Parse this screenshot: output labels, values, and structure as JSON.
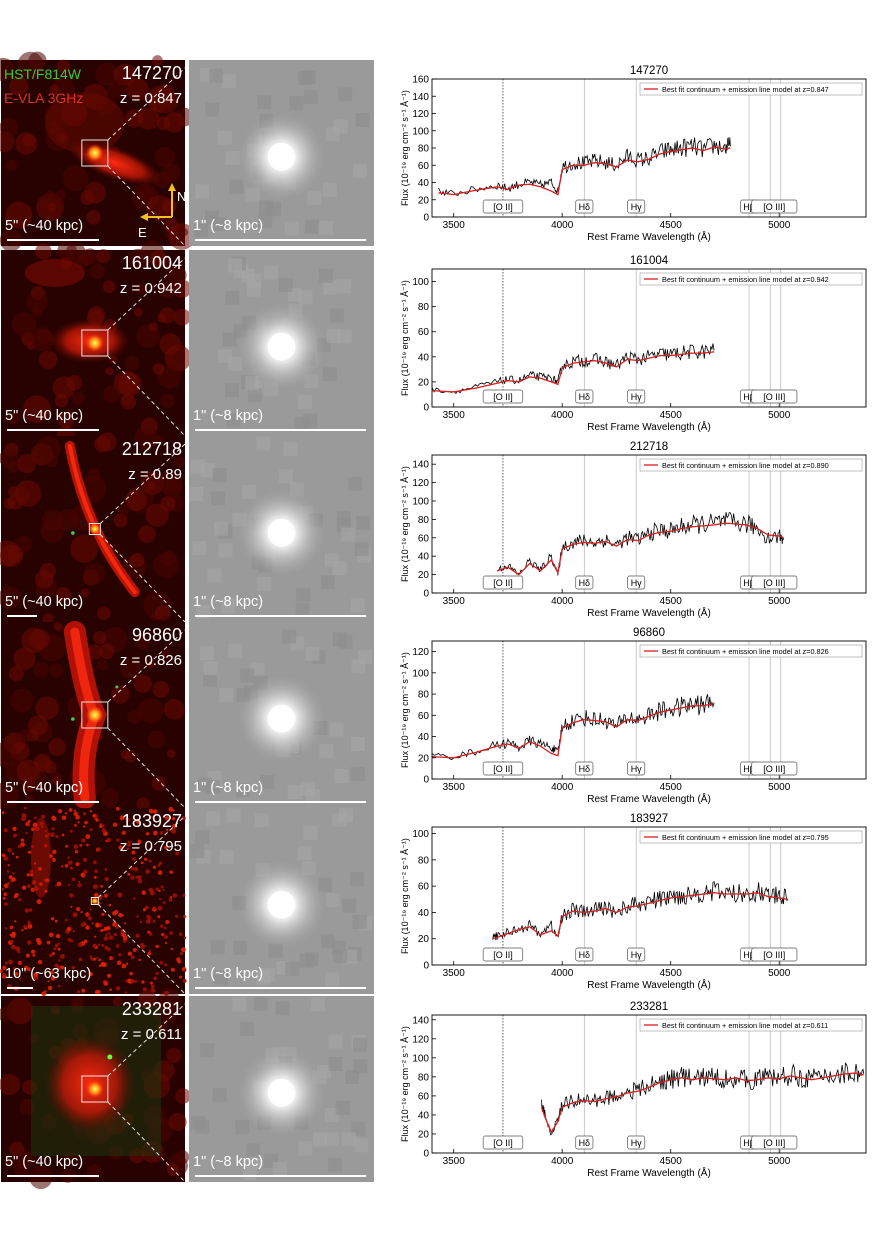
{
  "legend_band_labels": {
    "hst": "HST/F814W",
    "vla": "E-VLA 3GHz"
  },
  "compass": {
    "north": "N",
    "east": "E"
  },
  "axis_labels": {
    "x": "Rest Frame Wavelength (Å)",
    "y": "Flux (10⁻¹⁹ erg cm⁻² s⁻¹ Å⁻¹)"
  },
  "x_ticks": [
    3500,
    4000,
    4500,
    5000
  ],
  "line_labels": [
    {
      "id": "oii",
      "label": "[O II]",
      "wavelength": 3727,
      "line_style": "dotted"
    },
    {
      "id": "hd",
      "label": "Hδ",
      "wavelength": 4102,
      "line_style": "solid"
    },
    {
      "id": "hg",
      "label": "Hγ",
      "wavelength": 4341,
      "line_style": "solid"
    },
    {
      "id": "hb",
      "label": "Hβ",
      "wavelength": 4861,
      "line_style": "solid"
    },
    {
      "id": "oiii",
      "label": "[O III]",
      "wavelength": 4959,
      "line_style": "solid"
    },
    {
      "id": "oiii2",
      "label": "",
      "wavelength": 5007,
      "line_style": "solid"
    }
  ],
  "rows": [
    {
      "id": "147270",
      "z_label": "z = 0.847",
      "scale_radio": "5\" (~40 kpc)",
      "scale_opt": "1\" (~8 kpc)",
      "radio_style": "blob",
      "show_band_labels": true,
      "show_compass": true
    },
    {
      "id": "161004",
      "z_label": "z = 0.942",
      "scale_radio": "5\" (~40 kpc)",
      "scale_opt": "1\" (~8 kpc)",
      "radio_style": "patchy",
      "show_band_labels": false,
      "show_compass": false
    },
    {
      "id": "212718",
      "z_label": "z = 0.89",
      "scale_radio": "5\" (~40 kpc)",
      "scale_opt": "1\" (~8 kpc)",
      "radio_style": "jet",
      "show_band_labels": false,
      "show_compass": false
    },
    {
      "id": "96860",
      "z_label": "z = 0.826",
      "scale_radio": "5\" (~40 kpc)",
      "scale_opt": "1\" (~8 kpc)",
      "radio_style": "jet2",
      "show_band_labels": false,
      "show_compass": false
    },
    {
      "id": "183927",
      "z_label": "z = 0.795",
      "scale_radio": "10\" (~63 kpc)",
      "scale_opt": "1\" (~8 kpc)",
      "radio_style": "noise",
      "show_band_labels": false,
      "show_compass": false
    },
    {
      "id": "233281",
      "z_label": "z = 0.611",
      "scale_radio": "5\" (~40 kpc)",
      "scale_opt": "1\" (~8 kpc)",
      "radio_style": "cloud",
      "show_band_labels": false,
      "show_compass": false
    }
  ],
  "chart_data": [
    {
      "type": "line",
      "title": "147270",
      "legend": "Best fit continuum + emission line model at z=0.847",
      "legend_position": "top-right",
      "xlim": [
        3400,
        5400
      ],
      "ylim": [
        0,
        160
      ],
      "yticks": [
        0,
        20,
        40,
        60,
        80,
        100,
        120,
        140,
        160
      ],
      "series": [
        {
          "name": "",
          "color": "#000000",
          "x": [
            3430,
            3500,
            3600,
            3700,
            3750,
            3800,
            3850,
            3900,
            3950,
            3980,
            4000,
            4050,
            4100,
            4150,
            4200,
            4250,
            4300,
            4350,
            4400,
            4450,
            4500,
            4550,
            4600,
            4650,
            4700,
            4750,
            4775
          ],
          "y": [
            30,
            27,
            32,
            37,
            33,
            38,
            40,
            37,
            40,
            30,
            58,
            63,
            62,
            65,
            63,
            60,
            70,
            66,
            68,
            75,
            78,
            80,
            82,
            78,
            83,
            80,
            82
          ]
        },
        {
          "name": "Best fit continuum + emission line model at z=0.847",
          "color": "#d62020",
          "x": [
            3430,
            3500,
            3600,
            3700,
            3750,
            3800,
            3850,
            3900,
            3950,
            3980,
            4000,
            4050,
            4100,
            4150,
            4200,
            4250,
            4300,
            4350,
            4400,
            4450,
            4500,
            4550,
            4600,
            4650,
            4700,
            4750,
            4775
          ],
          "y": [
            28,
            26,
            31,
            35,
            32,
            37,
            38,
            35,
            30,
            26,
            55,
            60,
            60,
            63,
            62,
            58,
            66,
            64,
            67,
            73,
            76,
            78,
            80,
            77,
            81,
            79,
            80
          ]
        }
      ]
    },
    {
      "type": "line",
      "title": "161004",
      "legend": "Best fit continuum + emission line model at z=0.942",
      "legend_position": "top-right",
      "xlim": [
        3400,
        5400
      ],
      "ylim": [
        0,
        110
      ],
      "yticks": [
        0,
        20,
        40,
        60,
        80,
        100
      ],
      "series": [
        {
          "name": "",
          "color": "#000000",
          "x": [
            3400,
            3500,
            3600,
            3700,
            3750,
            3800,
            3850,
            3900,
            3950,
            3980,
            4000,
            4050,
            4100,
            4150,
            4200,
            4250,
            4300,
            4350,
            4400,
            4450,
            4500,
            4550,
            4600,
            4650,
            4700
          ],
          "y": [
            14,
            12,
            16,
            20,
            22,
            21,
            25,
            24,
            23,
            20,
            33,
            36,
            37,
            38,
            36,
            33,
            40,
            38,
            40,
            42,
            42,
            43,
            44,
            44,
            45
          ]
        },
        {
          "name": "Best fit continuum + emission line model at z=0.942",
          "color": "#d62020",
          "x": [
            3400,
            3500,
            3600,
            3700,
            3750,
            3800,
            3850,
            3900,
            3950,
            3980,
            4000,
            4050,
            4100,
            4150,
            4200,
            4250,
            4300,
            4350,
            4400,
            4450,
            4500,
            4550,
            4600,
            4650,
            4700
          ],
          "y": [
            13,
            12,
            15,
            19,
            21,
            20,
            24,
            23,
            20,
            18,
            31,
            35,
            36,
            37,
            35,
            32,
            38,
            37,
            39,
            41,
            41,
            42,
            43,
            43,
            44
          ]
        }
      ]
    },
    {
      "type": "line",
      "title": "212718",
      "legend": "Best fit continuum + emission line model at z=0.890",
      "legend_position": "top-right",
      "xlim": [
        3400,
        5400
      ],
      "ylim": [
        0,
        150
      ],
      "yticks": [
        0,
        20,
        40,
        60,
        80,
        100,
        120,
        140
      ],
      "series": [
        {
          "name": "",
          "color": "#000000",
          "x": [
            3700,
            3750,
            3800,
            3850,
            3900,
            3950,
            3980,
            4000,
            4050,
            4100,
            4150,
            4200,
            4250,
            4300,
            4350,
            4400,
            4450,
            4500,
            4550,
            4600,
            4650,
            4700,
            4750,
            4800,
            4850,
            4900,
            4950,
            5000,
            5020
          ],
          "y": [
            25,
            30,
            20,
            35,
            25,
            40,
            20,
            50,
            55,
            57,
            55,
            58,
            52,
            60,
            58,
            65,
            68,
            68,
            72,
            74,
            75,
            76,
            78,
            76,
            75,
            70,
            60,
            62,
            60
          ]
        },
        {
          "name": "Best fit continuum + emission line model at z=0.890",
          "color": "#d62020",
          "x": [
            3700,
            3750,
            3800,
            3850,
            3900,
            3950,
            3980,
            4000,
            4050,
            4100,
            4150,
            4200,
            4250,
            4300,
            4350,
            4400,
            4450,
            4500,
            4550,
            4600,
            4650,
            4700,
            4750,
            4800,
            4850,
            4900,
            4950,
            5000,
            5020
          ],
          "y": [
            24,
            28,
            20,
            32,
            24,
            36,
            22,
            48,
            53,
            55,
            54,
            56,
            51,
            58,
            57,
            63,
            66,
            67,
            70,
            72,
            73,
            74,
            76,
            75,
            74,
            70,
            63,
            62,
            60
          ]
        }
      ]
    },
    {
      "type": "line",
      "title": "96860",
      "legend": "Best fit continuum + emission line model at z=0.826",
      "legend_position": "top-right",
      "xlim": [
        3400,
        5400
      ],
      "ylim": [
        0,
        130
      ],
      "yticks": [
        0,
        20,
        40,
        60,
        80,
        100,
        120
      ],
      "series": [
        {
          "name": "",
          "color": "#000000",
          "x": [
            3400,
            3500,
            3600,
            3700,
            3750,
            3800,
            3850,
            3900,
            3950,
            3980,
            4000,
            4050,
            4100,
            4150,
            4200,
            4250,
            4300,
            4350,
            4400,
            4450,
            4500,
            4550,
            4600,
            4650,
            4700
          ],
          "y": [
            22,
            21,
            26,
            32,
            34,
            30,
            36,
            33,
            30,
            25,
            50,
            55,
            58,
            56,
            55,
            50,
            58,
            56,
            60,
            64,
            66,
            68,
            70,
            70,
            72
          ]
        },
        {
          "name": "Best fit continuum + emission line model at z=0.826",
          "color": "#d62020",
          "x": [
            3400,
            3500,
            3600,
            3700,
            3750,
            3800,
            3850,
            3900,
            3950,
            3980,
            4000,
            4050,
            4100,
            4150,
            4200,
            4250,
            4300,
            4350,
            4400,
            4450,
            4500,
            4550,
            4600,
            4650,
            4700
          ],
          "y": [
            21,
            20,
            25,
            31,
            33,
            29,
            35,
            31,
            24,
            22,
            48,
            53,
            56,
            55,
            54,
            49,
            56,
            55,
            59,
            63,
            65,
            67,
            69,
            69,
            71
          ]
        }
      ]
    },
    {
      "type": "line",
      "title": "183927",
      "legend": "Best fit continuum + emission line model at z=0.795",
      "legend_position": "top-right",
      "xlim": [
        3400,
        5400
      ],
      "ylim": [
        0,
        105
      ],
      "yticks": [
        0,
        20,
        40,
        60,
        80,
        100
      ],
      "series": [
        {
          "name": "",
          "color": "#000000",
          "x": [
            3680,
            3700,
            3750,
            3800,
            3850,
            3900,
            3950,
            3980,
            4000,
            4050,
            4100,
            4150,
            4200,
            4250,
            4300,
            4350,
            4400,
            4450,
            4500,
            4550,
            4600,
            4650,
            4700,
            4750,
            4800,
            4850,
            4900,
            4950,
            5000,
            5040
          ],
          "y": [
            20,
            22,
            25,
            28,
            30,
            24,
            30,
            20,
            38,
            42,
            40,
            42,
            44,
            40,
            45,
            46,
            48,
            50,
            52,
            53,
            54,
            55,
            56,
            55,
            54,
            55,
            56,
            53,
            52,
            50
          ]
        },
        {
          "name": "Best fit continuum + emission line model at z=0.795",
          "color": "#d62020",
          "x": [
            3680,
            3700,
            3750,
            3800,
            3850,
            3900,
            3950,
            3980,
            4000,
            4050,
            4100,
            4150,
            4200,
            4250,
            4300,
            4350,
            4400,
            4450,
            4500,
            4550,
            4600,
            4650,
            4700,
            4750,
            4800,
            4850,
            4900,
            4950,
            5000,
            5040
          ],
          "y": [
            20,
            21,
            24,
            27,
            29,
            23,
            26,
            22,
            37,
            41,
            40,
            41,
            43,
            40,
            44,
            45,
            47,
            49,
            51,
            52,
            53,
            54,
            55,
            54,
            54,
            54,
            55,
            52,
            51,
            50
          ]
        }
      ]
    },
    {
      "type": "line",
      "title": "233281",
      "legend": "Best fit continuum + emission line model at z=0.611",
      "legend_position": "top-right",
      "xlim": [
        3400,
        5400
      ],
      "ylim": [
        0,
        145
      ],
      "yticks": [
        0,
        20,
        40,
        60,
        80,
        100,
        120,
        140
      ],
      "series": [
        {
          "name": "",
          "color": "#000000",
          "x": [
            3905,
            3920,
            3950,
            3980,
            4000,
            4050,
            4100,
            4150,
            4200,
            4250,
            4300,
            4350,
            4400,
            4450,
            4500,
            4550,
            4600,
            4650,
            4700,
            4750,
            4800,
            4850,
            4900,
            4950,
            5000,
            5050,
            5100,
            5150,
            5200,
            5250,
            5300,
            5350,
            5390
          ],
          "y": [
            50,
            40,
            20,
            35,
            50,
            55,
            56,
            55,
            58,
            60,
            65,
            66,
            70,
            75,
            78,
            80,
            78,
            80,
            79,
            78,
            80,
            76,
            78,
            80,
            79,
            82,
            80,
            78,
            80,
            82,
            84,
            85,
            83
          ]
        },
        {
          "name": "Best fit continuum + emission line model at z=0.611",
          "color": "#d62020",
          "x": [
            3905,
            3920,
            3950,
            3980,
            4000,
            4050,
            4100,
            4150,
            4200,
            4250,
            4300,
            4350,
            4400,
            4450,
            4500,
            4550,
            4600,
            4650,
            4700,
            4750,
            4800,
            4850,
            4900,
            4950,
            5000,
            5050,
            5100,
            5150,
            5200,
            5250,
            5300,
            5350,
            5390
          ],
          "y": [
            48,
            38,
            22,
            33,
            48,
            53,
            55,
            54,
            57,
            59,
            63,
            65,
            69,
            74,
            77,
            79,
            77,
            79,
            78,
            77,
            79,
            76,
            77,
            79,
            78,
            81,
            79,
            77,
            79,
            81,
            83,
            84,
            82
          ]
        }
      ]
    }
  ]
}
